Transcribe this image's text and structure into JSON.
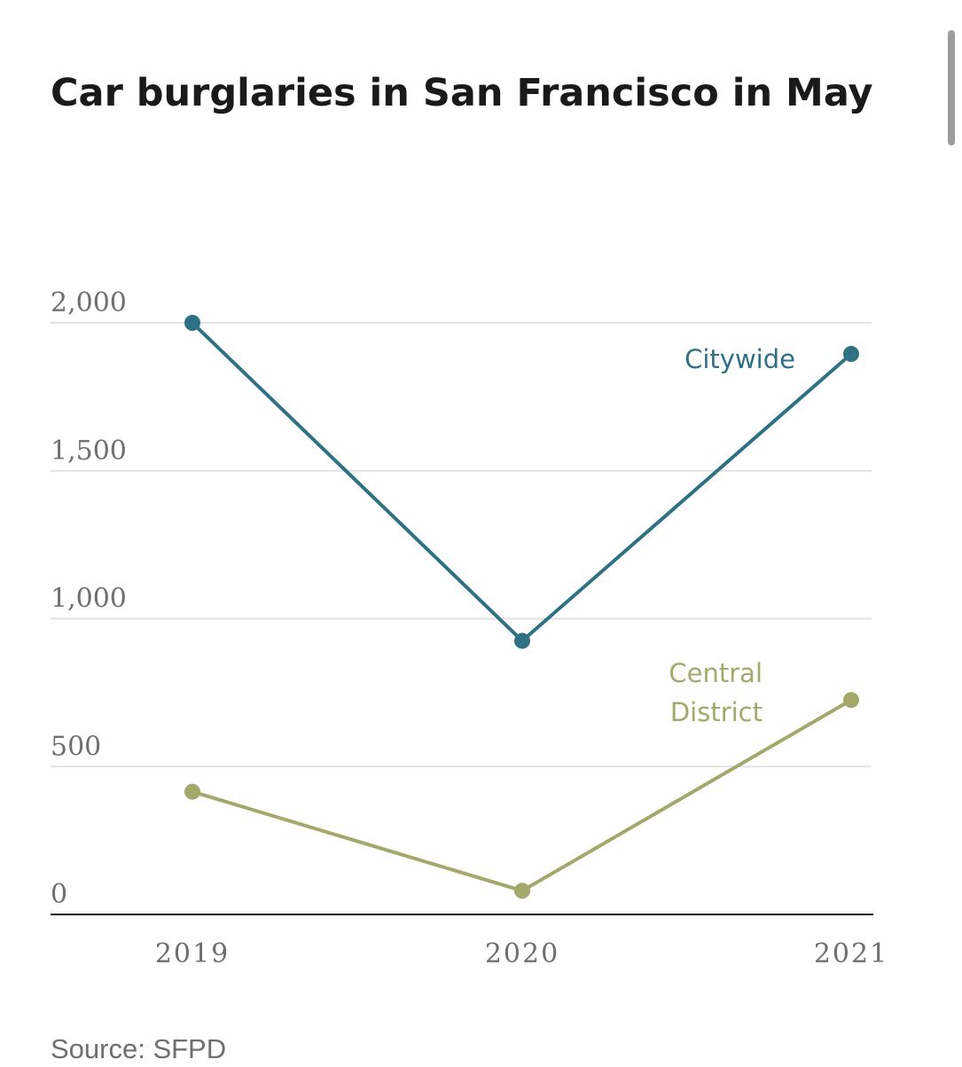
{
  "chart_data": {
    "type": "line",
    "title": "Car burglaries in San Francisco in May",
    "categories": [
      "2019",
      "2020",
      "2021"
    ],
    "series": [
      {
        "name": "Citywide",
        "values": [
          2000,
          925,
          1895
        ],
        "color": "#2e7185"
      },
      {
        "name": "Central District",
        "values": [
          415,
          80,
          725
        ],
        "color": "#a4a86a"
      }
    ],
    "y_ticks": [
      {
        "value": 0,
        "label": "0"
      },
      {
        "value": 500,
        "label": "500"
      },
      {
        "value": 1000,
        "label": "1,000"
      },
      {
        "value": 1500,
        "label": "1,500"
      },
      {
        "value": 2000,
        "label": "2,000"
      }
    ],
    "ylim": [
      0,
      2000
    ],
    "grid": true,
    "legend": "inline labels at the right end of each line",
    "source": "Source: SFPD"
  },
  "colors": {
    "gridline": "#e2e2e2",
    "axis": "#1a1a1a",
    "tick_label": "#6f6f6f"
  }
}
